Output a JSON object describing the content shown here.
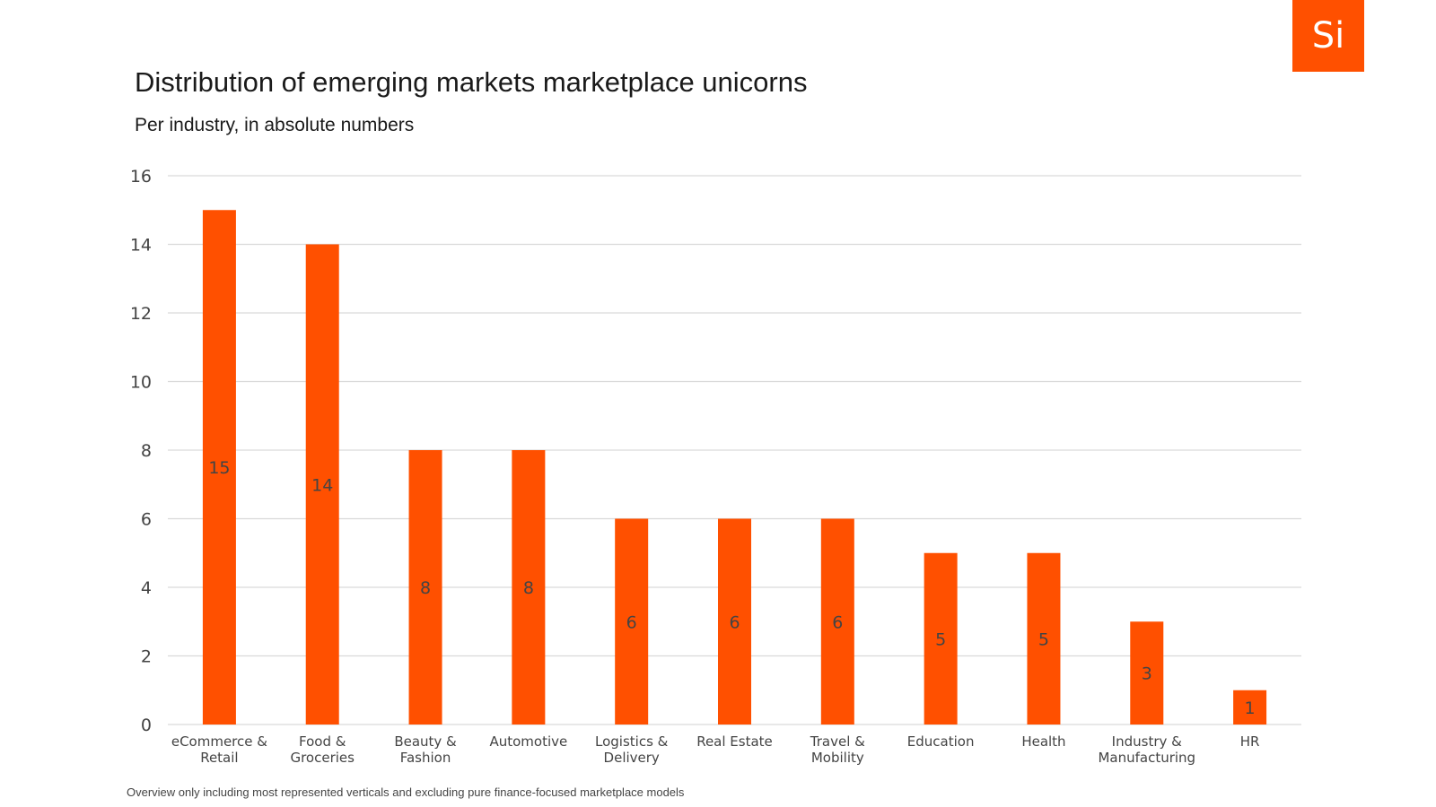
{
  "logo": {
    "text": "Si"
  },
  "chart_data": {
    "type": "bar",
    "title": "Distribution of emerging markets marketplace unicorns",
    "subtitle": "Per industry, in absolute numbers",
    "footnote": "Overview only including most represented verticals and excluding pure finance-focused marketplace models",
    "categories": [
      [
        "eCommerce &",
        "Retail"
      ],
      [
        "Food &",
        "Groceries"
      ],
      [
        "Beauty &",
        "Fashion"
      ],
      [
        "Automotive"
      ],
      [
        "Logistics &",
        "Delivery"
      ],
      [
        "Real Estate"
      ],
      [
        "Travel &",
        "Mobility"
      ],
      [
        "Education"
      ],
      [
        "Health"
      ],
      [
        "Industry &",
        "Manufacturing"
      ],
      [
        "HR"
      ]
    ],
    "values": [
      15,
      14,
      8,
      8,
      6,
      6,
      6,
      5,
      5,
      3,
      1
    ],
    "ylim": [
      0,
      16
    ],
    "yticks": [
      0,
      2,
      4,
      6,
      8,
      10,
      12,
      14,
      16
    ],
    "grid": true,
    "legend": "none",
    "colors": {
      "bar": "#FF5000",
      "grid": "#d9d9d9",
      "accent": "#FF5000"
    }
  }
}
